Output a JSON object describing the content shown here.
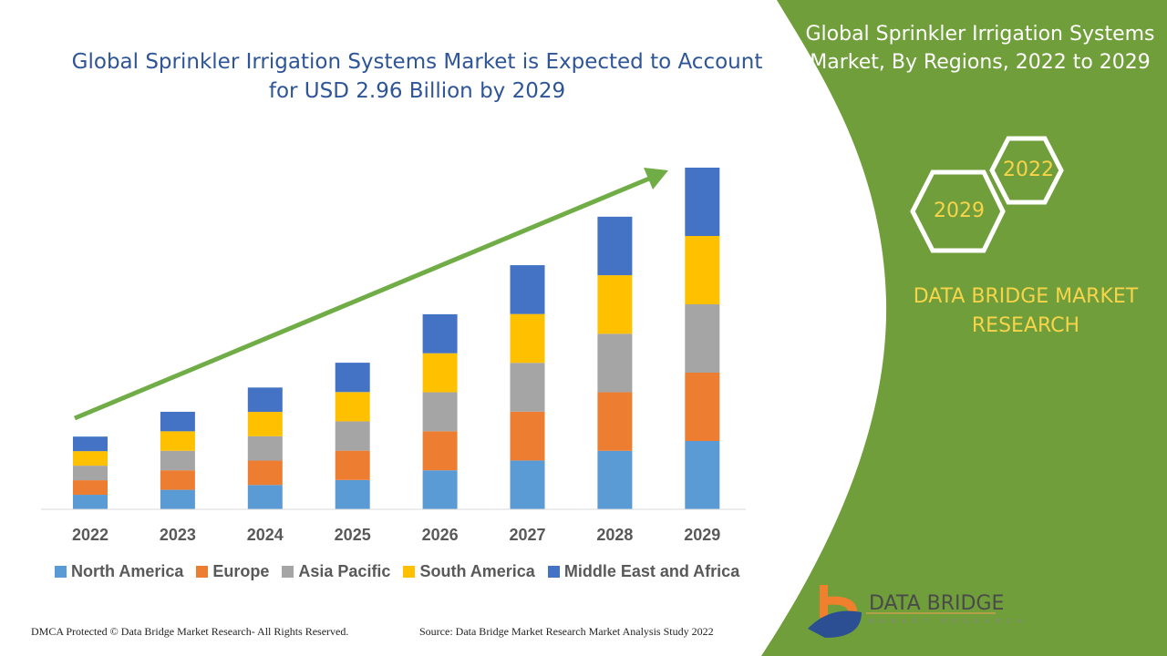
{
  "title": "Global Sprinkler Irrigation Systems Market is Expected to Account for USD 2.96 Billion by 2029",
  "side_panel": {
    "title": "Global Sprinkler Irrigation Systems Market, By Regions, 2022 to 2029",
    "hex_labels": [
      "2022",
      "2029"
    ],
    "brand": "DATA BRIDGE MARKET RESEARCH",
    "panel_color": "#6f9e3a",
    "accent_color": "#f7d44a"
  },
  "logo": {
    "name": "DATA BRIDGE",
    "tagline": "MARKET RESEARCH"
  },
  "footer": {
    "left": "DMCA Protected © Data Bridge Market Research- All Rights Reserved.",
    "right": "Source: Data Bridge Market Research Market Analysis Study 2022"
  },
  "chart_data": {
    "type": "bar",
    "stacked": true,
    "title": "Global Sprinkler Irrigation Systems Market is Expected to Account for USD 2.96 Billion by 2029",
    "xlabel": "",
    "ylabel": "",
    "grid": false,
    "legend_position": "bottom",
    "trend_arrow": true,
    "categories": [
      "2022",
      "2023",
      "2024",
      "2025",
      "2026",
      "2027",
      "2028",
      "2029"
    ],
    "series": [
      {
        "name": "North America",
        "color": "#5b9bd5",
        "values": [
          0.126,
          0.169,
          0.211,
          0.254,
          0.338,
          0.423,
          0.507,
          0.592
        ]
      },
      {
        "name": "Europe",
        "color": "#ed7d31",
        "values": [
          0.126,
          0.169,
          0.211,
          0.254,
          0.338,
          0.423,
          0.507,
          0.592
        ]
      },
      {
        "name": "Asia Pacific",
        "color": "#a5a5a5",
        "values": [
          0.126,
          0.169,
          0.211,
          0.254,
          0.338,
          0.423,
          0.507,
          0.592
        ]
      },
      {
        "name": "South America",
        "color": "#ffc000",
        "values": [
          0.126,
          0.169,
          0.211,
          0.254,
          0.338,
          0.423,
          0.507,
          0.592
        ]
      },
      {
        "name": "Middle East and Africa",
        "color": "#4472c4",
        "values": [
          0.126,
          0.169,
          0.211,
          0.254,
          0.338,
          0.423,
          0.507,
          0.592
        ]
      }
    ]
  }
}
